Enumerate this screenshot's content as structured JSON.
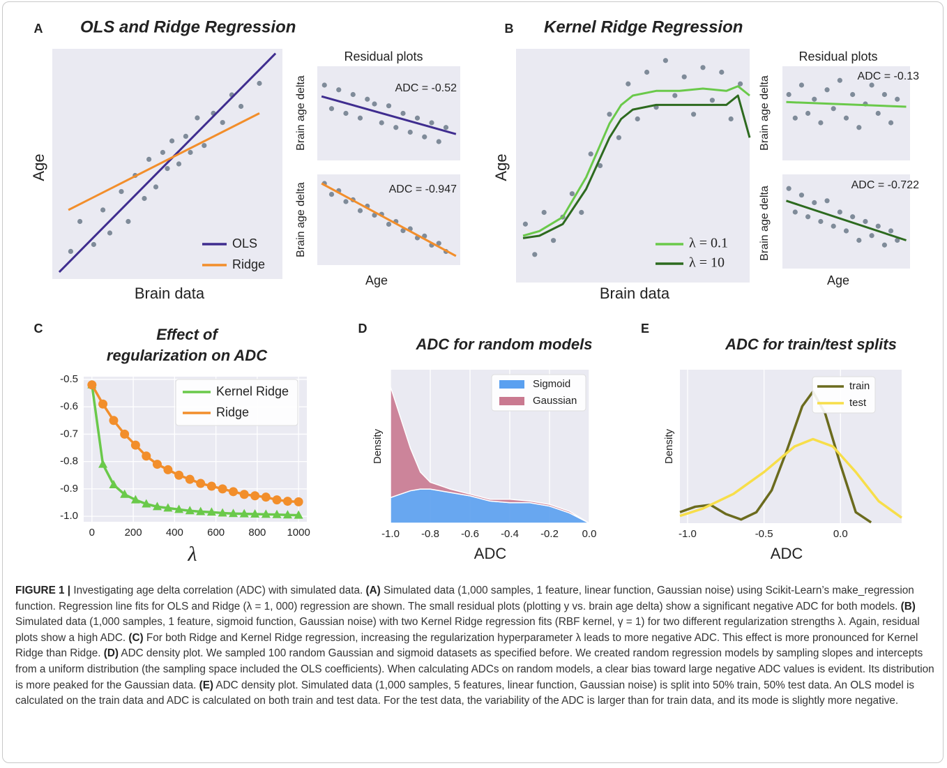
{
  "chart_data": [
    {
      "type": "scatter",
      "panel": "A",
      "title": "OLS and Ridge Regression",
      "xlabel": "Brain data",
      "ylabel": "Age",
      "xlim": [
        0,
        1
      ],
      "ylim": [
        0,
        1
      ],
      "points": {
        "color": "#6c7a89",
        "x": [
          0.08,
          0.12,
          0.18,
          0.22,
          0.25,
          0.3,
          0.33,
          0.36,
          0.4,
          0.42,
          0.45,
          0.48,
          0.5,
          0.52,
          0.55,
          0.58,
          0.6,
          0.63,
          0.66,
          0.7,
          0.74,
          0.78,
          0.82,
          0.9
        ],
        "values": [
          0.12,
          0.25,
          0.15,
          0.3,
          0.2,
          0.38,
          0.25,
          0.45,
          0.35,
          0.52,
          0.4,
          0.55,
          0.48,
          0.6,
          0.5,
          0.62,
          0.55,
          0.7,
          0.58,
          0.72,
          0.68,
          0.8,
          0.75,
          0.85
        ]
      },
      "series": [
        {
          "name": "OLS",
          "color": "#3f2d8f",
          "x": [
            0.03,
            0.97
          ],
          "values": [
            0.03,
            0.98
          ]
        },
        {
          "name": "Ridge",
          "color": "#f28e2b",
          "x": [
            0.07,
            0.9
          ],
          "values": [
            0.3,
            0.72
          ]
        }
      ]
    },
    {
      "type": "scatter",
      "title": "Residual plots",
      "ylabel": "Brain age delta",
      "annotation": "ADC = -0.52",
      "xlim": [
        0,
        1
      ],
      "ylim": [
        0,
        1
      ],
      "points": {
        "color": "#6c7a89",
        "x": [
          0.05,
          0.1,
          0.15,
          0.2,
          0.25,
          0.3,
          0.35,
          0.4,
          0.45,
          0.5,
          0.55,
          0.6,
          0.65,
          0.7,
          0.75,
          0.8,
          0.85,
          0.9
        ],
        "values": [
          0.8,
          0.55,
          0.75,
          0.5,
          0.7,
          0.45,
          0.65,
          0.6,
          0.4,
          0.58,
          0.35,
          0.5,
          0.3,
          0.45,
          0.25,
          0.4,
          0.2,
          0.35
        ]
      },
      "series": [
        {
          "color": "#3f2d8f",
          "x": [
            0.03,
            0.97
          ],
          "values": [
            0.68,
            0.28
          ]
        }
      ]
    },
    {
      "type": "scatter",
      "xlabel": "Age",
      "ylabel": "Brain age delta",
      "annotation": "ADC = -0.947",
      "xlim": [
        0,
        1
      ],
      "ylim": [
        0,
        1
      ],
      "points": {
        "color": "#6c7a89",
        "x": [
          0.05,
          0.1,
          0.15,
          0.2,
          0.25,
          0.3,
          0.35,
          0.4,
          0.45,
          0.5,
          0.55,
          0.6,
          0.65,
          0.7,
          0.75,
          0.8,
          0.85,
          0.9
        ],
        "values": [
          0.9,
          0.78,
          0.82,
          0.7,
          0.72,
          0.6,
          0.65,
          0.55,
          0.56,
          0.45,
          0.48,
          0.38,
          0.4,
          0.3,
          0.32,
          0.22,
          0.24,
          0.15
        ]
      },
      "series": [
        {
          "color": "#f28e2b",
          "x": [
            0.03,
            0.97
          ],
          "values": [
            0.9,
            0.1
          ]
        }
      ]
    },
    {
      "type": "scatter",
      "panel": "B",
      "title": "Kernel Ridge Regression",
      "xlabel": "Brain data",
      "ylabel": "Age",
      "xlim": [
        0,
        1
      ],
      "ylim": [
        0,
        1
      ],
      "points": {
        "color": "#6c7a89",
        "x": [
          0.04,
          0.08,
          0.12,
          0.16,
          0.2,
          0.24,
          0.28,
          0.32,
          0.36,
          0.4,
          0.44,
          0.48,
          0.52,
          0.56,
          0.6,
          0.64,
          0.68,
          0.72,
          0.76,
          0.8,
          0.84,
          0.88,
          0.92,
          0.96
        ],
        "values": [
          0.25,
          0.12,
          0.3,
          0.18,
          0.28,
          0.38,
          0.3,
          0.55,
          0.5,
          0.72,
          0.62,
          0.85,
          0.7,
          0.9,
          0.75,
          0.95,
          0.8,
          0.88,
          0.72,
          0.92,
          0.78,
          0.9,
          0.7,
          0.85
        ]
      },
      "series": [
        {
          "name": "λ = 0.1",
          "color": "#6ac94a",
          "x": [
            0.03,
            0.1,
            0.2,
            0.3,
            0.4,
            0.45,
            0.5,
            0.6,
            0.7,
            0.8,
            0.9,
            0.95,
            1.0
          ],
          "values": [
            0.2,
            0.22,
            0.28,
            0.45,
            0.68,
            0.76,
            0.8,
            0.82,
            0.82,
            0.83,
            0.82,
            0.84,
            0.8
          ]
        },
        {
          "name": "λ = 10",
          "color": "#2d6a1f",
          "x": [
            0.03,
            0.1,
            0.2,
            0.3,
            0.4,
            0.45,
            0.5,
            0.6,
            0.7,
            0.8,
            0.9,
            0.95,
            1.0
          ],
          "values": [
            0.19,
            0.2,
            0.25,
            0.4,
            0.62,
            0.7,
            0.74,
            0.76,
            0.76,
            0.76,
            0.76,
            0.8,
            0.62
          ]
        }
      ]
    },
    {
      "type": "scatter",
      "title": "Residual plots",
      "ylabel": "Brain age delta",
      "annotation": "ADC = -0.13",
      "xlim": [
        0,
        1
      ],
      "ylim": [
        0,
        1
      ],
      "points": {
        "color": "#6c7a89",
        "x": [
          0.05,
          0.1,
          0.15,
          0.2,
          0.25,
          0.3,
          0.35,
          0.4,
          0.45,
          0.5,
          0.55,
          0.6,
          0.65,
          0.7,
          0.75,
          0.8,
          0.85,
          0.9
        ],
        "values": [
          0.7,
          0.45,
          0.8,
          0.5,
          0.65,
          0.4,
          0.75,
          0.55,
          0.85,
          0.45,
          0.7,
          0.35,
          0.6,
          0.8,
          0.5,
          0.7,
          0.4,
          0.65
        ]
      },
      "series": [
        {
          "color": "#6ac94a",
          "x": [
            0.03,
            0.97
          ],
          "values": [
            0.62,
            0.57
          ]
        }
      ]
    },
    {
      "type": "scatter",
      "xlabel": "Age",
      "ylabel": "Brain age delta",
      "annotation": "ADC = -0.722",
      "xlim": [
        0,
        1
      ],
      "ylim": [
        0,
        1
      ],
      "points": {
        "color": "#6c7a89",
        "x": [
          0.05,
          0.1,
          0.15,
          0.2,
          0.25,
          0.3,
          0.35,
          0.4,
          0.45,
          0.5,
          0.55,
          0.6,
          0.65,
          0.7,
          0.75,
          0.8,
          0.85,
          0.9
        ],
        "values": [
          0.85,
          0.6,
          0.78,
          0.55,
          0.7,
          0.5,
          0.72,
          0.45,
          0.6,
          0.4,
          0.55,
          0.3,
          0.5,
          0.35,
          0.45,
          0.25,
          0.4,
          0.3
        ]
      },
      "series": [
        {
          "color": "#2d6a1f",
          "x": [
            0.03,
            0.97
          ],
          "values": [
            0.72,
            0.3
          ]
        }
      ]
    },
    {
      "type": "line",
      "panel": "C",
      "title": [
        "Effect of",
        "regularization on ADC"
      ],
      "xlabel": "λ",
      "grid": true,
      "xlim": [
        -40,
        1040
      ],
      "ylim": [
        -1.02,
        -0.49
      ],
      "xticks": [
        0,
        200,
        400,
        600,
        800,
        1000
      ],
      "yticks": [
        -0.5,
        -0.6,
        -0.7,
        -0.8,
        -0.9,
        {
          "value": -1,
          "label": "-1.0"
        }
      ],
      "x": [
        0,
        53,
        105,
        158,
        211,
        263,
        316,
        368,
        421,
        474,
        526,
        579,
        632,
        684,
        737,
        789,
        842,
        895,
        947,
        1000
      ],
      "series": [
        {
          "name": "Kernel Ridge",
          "color": "#6ac94a",
          "marker": "triangle",
          "values": [
            -0.52,
            -0.81,
            -0.885,
            -0.92,
            -0.94,
            -0.955,
            -0.965,
            -0.97,
            -0.975,
            -0.98,
            -0.983,
            -0.985,
            -0.988,
            -0.99,
            -0.991,
            -0.992,
            -0.993,
            -0.994,
            -0.995,
            -0.996
          ]
        },
        {
          "name": "Ridge",
          "color": "#f28e2b",
          "marker": "circle",
          "values": [
            -0.52,
            -0.59,
            -0.65,
            -0.7,
            -0.74,
            -0.78,
            -0.81,
            -0.83,
            -0.85,
            -0.865,
            -0.88,
            -0.89,
            -0.9,
            -0.91,
            -0.92,
            -0.925,
            -0.93,
            -0.94,
            -0.945,
            -0.947
          ]
        }
      ]
    },
    {
      "type": "area",
      "stacked": true,
      "panel": "D",
      "title": "ADC for random models",
      "xlabel": "ADC",
      "ylabel": "Density",
      "grid": true,
      "xlim": [
        -1,
        0
      ],
      "ylim": [
        0,
        0.9
      ],
      "xticks": [
        {
          "value": -1,
          "label": "-1.0"
        },
        -0.8,
        -0.6,
        -0.4,
        -0.2,
        {
          "value": 0,
          "label": "0.0"
        }
      ],
      "x": [
        -1,
        -0.95,
        -0.9,
        -0.85,
        -0.8,
        -0.7,
        -0.6,
        -0.5,
        -0.4,
        -0.3,
        -0.2,
        -0.1,
        0
      ],
      "series": [
        {
          "name": "Sigmoid",
          "color": "#5aa0f0",
          "values": [
            0.15,
            0.17,
            0.19,
            0.2,
            0.2,
            0.18,
            0.16,
            0.13,
            0.12,
            0.12,
            0.1,
            0.06,
            0
          ]
        },
        {
          "name": "Gaussian",
          "color": "#c97990",
          "values": [
            0.65,
            0.45,
            0.25,
            0.1,
            0.04,
            0.02,
            0.01,
            0.01,
            0.02,
            0.01,
            0.01,
            0.01,
            0
          ]
        }
      ]
    },
    {
      "type": "line",
      "panel": "E",
      "title": "ADC for train/test splits",
      "xlabel": "ADC",
      "ylabel": "Density",
      "grid": true,
      "xlim": [
        -1.05,
        0.4
      ],
      "ylim": [
        0,
        4.2
      ],
      "xticks": [
        {
          "value": -1,
          "label": "-1.0"
        },
        -0.5,
        {
          "value": 0,
          "label": "0.0"
        }
      ],
      "series": [
        {
          "name": "train",
          "color": "#6b6b1e",
          "x": [
            -1.05,
            -0.95,
            -0.85,
            -0.75,
            -0.65,
            -0.55,
            -0.45,
            -0.35,
            -0.25,
            -0.18,
            -0.1,
            0,
            0.1,
            0.2
          ],
          "values": [
            0.3,
            0.45,
            0.5,
            0.25,
            0.1,
            0.3,
            0.9,
            2.0,
            3.2,
            3.6,
            3.0,
            1.6,
            0.3,
            0.02
          ]
        },
        {
          "name": "test",
          "color": "#f7de4a",
          "x": [
            -1.05,
            -0.9,
            -0.7,
            -0.5,
            -0.3,
            -0.18,
            -0.05,
            0.1,
            0.25,
            0.4
          ],
          "values": [
            0.2,
            0.4,
            0.8,
            1.4,
            2.1,
            2.3,
            2.1,
            1.4,
            0.6,
            0.15
          ]
        }
      ]
    }
  ],
  "caption": [
    {
      "text": "FIGURE 1 |",
      "bold": true
    },
    {
      "text": " Investigating age delta correlation (ADC) with simulated data. "
    },
    {
      "text": "(A)",
      "bold": true
    },
    {
      "text": " Simulated data (1,000 samples, 1 feature, linear function, Gaussian noise) using Scikit-Learn’s make_regression function. Regression line fits for OLS and Ridge (λ = 1, 000) regression are shown. The small residual plots (plotting y vs. brain age delta) show a significant negative ADC for both models. "
    },
    {
      "text": "(B)",
      "bold": true
    },
    {
      "text": " Simulated data (1,000 samples, 1 feature, sigmoid function, Gaussian noise) with two Kernel Ridge regression fits (RBF kernel, γ = 1) for two different regularization strengths λ. Again, residual plots show a high ADC. "
    },
    {
      "text": "(C)",
      "bold": true
    },
    {
      "text": " For both Ridge and Kernel Ridge regression, increasing the regularization hyperparameter λ leads to more negative ADC. This effect is more pronounced for Kernel Ridge than Ridge. "
    },
    {
      "text": "(D)",
      "bold": true
    },
    {
      "text": " ADC density plot. We sampled 100 random Gaussian and sigmoid datasets as specified before. We created random regression models by sampling slopes and intercepts from a uniform distribution (the sampling space included the OLS coefficients). When calculating ADCs on random models, a clear bias toward large negative ADC values is evident. Its distribution is more peaked for the Gaussian data. "
    },
    {
      "text": "(E)",
      "bold": true
    },
    {
      "text": " ADC density plot. Simulated data (1,000 samples, 5 features, linear function, Gaussian noise) is split into 50% train, 50% test data. An OLS model is calculated on the train data and ADC is calculated on both train and test data. For the test data, the variability of the ADC is larger than for train data, and its mode is slightly more negative."
    }
  ]
}
